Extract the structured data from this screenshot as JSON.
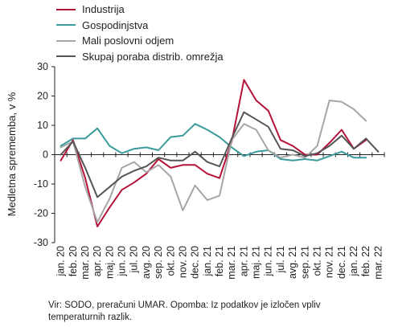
{
  "chart_data": {
    "type": "line",
    "ylabel": "Medletna sprememba, v %",
    "ylim": [
      -30,
      30
    ],
    "yticks": [
      30,
      20,
      10,
      0,
      -10,
      -20,
      -30
    ],
    "categories": [
      "jan. 20",
      "feb. 20",
      "mar. 20",
      "apr. 20",
      "maj. 20",
      "jun. 20",
      "jul. 20",
      "avg. 20",
      "sep. 20",
      "okt. 20",
      "nov. 20",
      "dec. 20",
      "jan. 21",
      "feb. 21",
      "mar. 21",
      "apr. 21",
      "maj. 21",
      "jun. 21",
      "jul. 21",
      "avg. 21",
      "sep. 21",
      "okt. 21",
      "nov. 21",
      "dec. 21",
      "jan. 22",
      "feb. 22",
      "mar. 22"
    ],
    "series": [
      {
        "name": "Industrija",
        "color": "#b5123a",
        "values": [
          -2,
          5,
          -8,
          -24.5,
          -18,
          -12,
          -9.5,
          -6.5,
          -1.5,
          -4.5,
          -3.5,
          -3.5,
          -6.5,
          -8,
          4.5,
          25.5,
          18.5,
          15,
          5,
          3,
          0,
          0,
          4,
          8.5,
          2,
          5,
          null
        ]
      },
      {
        "name": "Gospodinjstva",
        "color": "#3a9a9c",
        "values": [
          3,
          5.5,
          5.5,
          9,
          3,
          0.5,
          2,
          2.5,
          1.5,
          6,
          6.5,
          10.5,
          8.5,
          6,
          2.5,
          -0.5,
          1,
          1.5,
          -1.5,
          -2,
          -1.5,
          -2,
          -0.5,
          1,
          -1,
          -1,
          null
        ]
      },
      {
        "name": "Mali poslovni odjem",
        "color": "#a6a6a6",
        "values": [
          2.5,
          4.5,
          -11,
          -23,
          -15,
          -4.5,
          -2.5,
          -6,
          -3.5,
          -7.5,
          -19,
          -10.5,
          -15.5,
          -14,
          5,
          10.5,
          8.5,
          1.5,
          -1,
          0,
          -1,
          3,
          18.5,
          18,
          15.5,
          11.5,
          null
        ]
      },
      {
        "name": "Skupaj poraba distrib. omrežja",
        "color": "#555555",
        "values": [
          0,
          4.5,
          -4.5,
          -14.5,
          -11,
          -7.5,
          -5.5,
          -4,
          -1,
          -2,
          -2,
          1,
          -2.5,
          -4,
          5.5,
          14.5,
          12,
          9.5,
          2,
          1.5,
          -0.5,
          0.5,
          3,
          6.5,
          2,
          5.5,
          1
        ]
      }
    ]
  },
  "footer": {
    "line1": "Vir: SODO, preračuni UMAR. Opomba: Iz podatkov je izločen vpliv",
    "line2": "temperaturnih razlik."
  }
}
